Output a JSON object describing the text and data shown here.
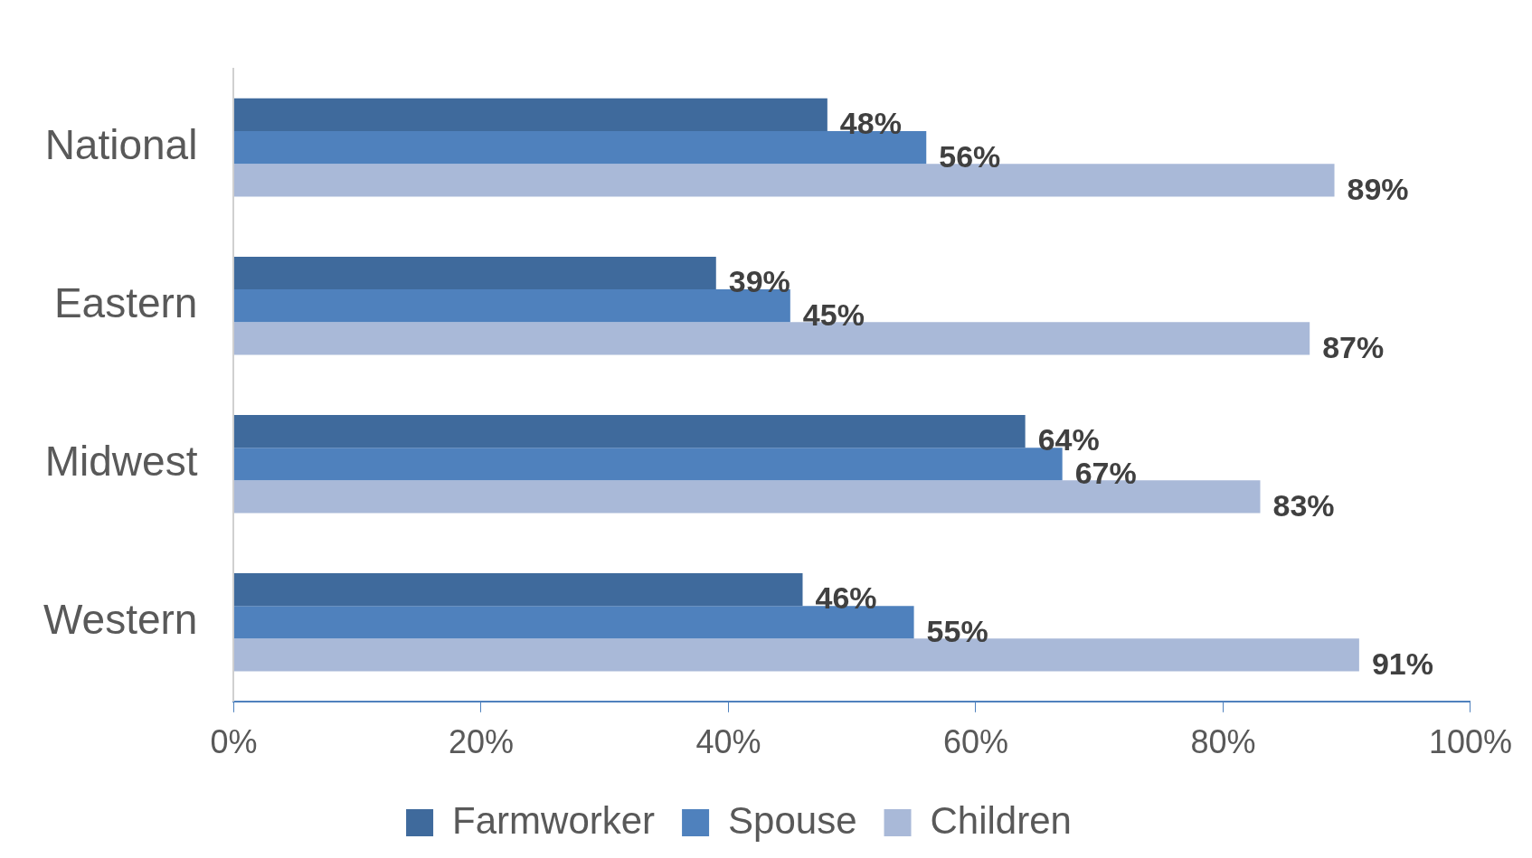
{
  "chart_data": {
    "type": "bar",
    "orientation": "horizontal",
    "categories": [
      "National",
      "Eastern",
      "Midwest",
      "Western"
    ],
    "series": [
      {
        "name": "Farmworker",
        "color": "#3f6a9c",
        "values": [
          48,
          39,
          64,
          46
        ],
        "value_labels": [
          "48%",
          "39%",
          "64%",
          "46%"
        ]
      },
      {
        "name": "Spouse",
        "color": "#4f81bd",
        "values": [
          56,
          45,
          67,
          55
        ],
        "value_labels": [
          "56%",
          "45%",
          "67%",
          "55%"
        ]
      },
      {
        "name": "Children",
        "color": "#a9b9d8",
        "values": [
          89,
          87,
          83,
          91
        ],
        "value_labels": [
          "89%",
          "87%",
          "83%",
          "91%"
        ]
      }
    ],
    "xlim": [
      0,
      100
    ],
    "xticks": [
      {
        "value": 0,
        "label": "0%"
      },
      {
        "value": 20,
        "label": "20%"
      },
      {
        "value": 40,
        "label": "40%"
      },
      {
        "value": 60,
        "label": "60%"
      },
      {
        "value": 80,
        "label": "80%"
      },
      {
        "value": 100,
        "label": "100%"
      }
    ],
    "legend": "bottom"
  }
}
